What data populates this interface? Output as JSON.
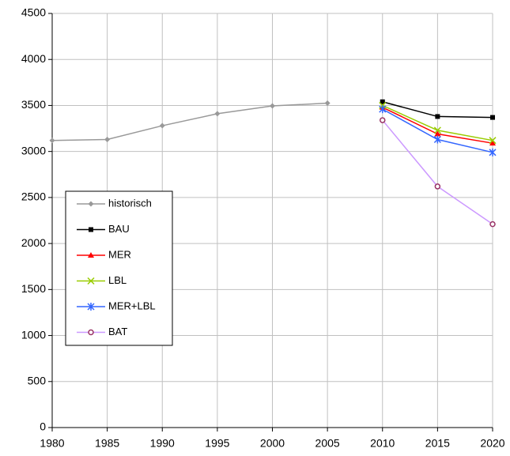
{
  "chart_data": {
    "type": "line",
    "x": [
      1980,
      1985,
      1990,
      1995,
      2000,
      2005,
      2010,
      2015,
      2020
    ],
    "series": [
      {
        "name": "historisch",
        "color": "#999999",
        "marker": "diamond",
        "values": [
          3120,
          3130,
          3280,
          3410,
          3495,
          3525,
          null,
          null,
          null
        ]
      },
      {
        "name": "BAU",
        "color": "#000000",
        "marker": "square",
        "values": [
          null,
          null,
          null,
          null,
          null,
          null,
          3540,
          3380,
          3370
        ]
      },
      {
        "name": "MER",
        "color": "#ff0000",
        "marker": "triangle",
        "values": [
          null,
          null,
          null,
          null,
          null,
          null,
          3480,
          3190,
          3090
        ]
      },
      {
        "name": "LBL",
        "color": "#99cc00",
        "marker": "x",
        "values": [
          null,
          null,
          null,
          null,
          null,
          null,
          3500,
          3230,
          3120
        ]
      },
      {
        "name": "MER+LBL",
        "color": "#3366ff",
        "marker": "star",
        "values": [
          null,
          null,
          null,
          null,
          null,
          null,
          3460,
          3130,
          2990
        ]
      },
      {
        "name": "BAT",
        "color": "#cc99ff",
        "marker": "circle",
        "values": [
          null,
          null,
          null,
          null,
          null,
          null,
          3340,
          2620,
          2210
        ]
      }
    ],
    "xlim": [
      1980,
      2020
    ],
    "xticks": [
      1980,
      1985,
      1990,
      1995,
      2000,
      2005,
      2010,
      2015,
      2020
    ],
    "ylim": [
      0,
      4500
    ],
    "yticks": [
      0,
      500,
      1000,
      1500,
      2000,
      2500,
      3000,
      3500,
      4000,
      4500
    ],
    "grid": true
  }
}
